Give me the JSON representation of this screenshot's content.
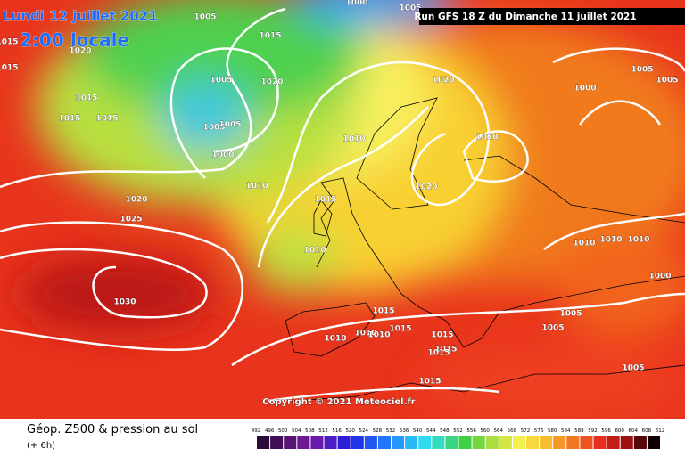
{
  "header": {
    "date": "Lundi 12 juillet 2021",
    "time": "2:00 locale",
    "run": "Run GFS 18 Z du Dimanche 11 juillet 2021"
  },
  "copyright": "Copyright © 2021 Meteociel.fr",
  "legend": {
    "title": "Géop. Z500 & pression au sol",
    "lead": "(+ 6h)",
    "ticks": [
      492,
      496,
      500,
      504,
      508,
      512,
      516,
      520,
      524,
      528,
      532,
      536,
      540,
      544,
      548,
      552,
      556,
      560,
      564,
      568,
      572,
      576,
      580,
      584,
      588,
      592,
      596,
      600,
      604,
      608,
      612
    ]
  },
  "isobar_labels": [
    1005,
    1000,
    1005,
    1015,
    1020,
    1015,
    1015,
    1005,
    1020,
    1015,
    1015,
    1015,
    1005,
    1000,
    1010,
    1010,
    1020,
    1025,
    1015,
    1010,
    1030,
    1020,
    1020,
    1020,
    1005,
    1000,
    1005,
    1010,
    1010,
    1010,
    1000,
    1015,
    1005,
    1005,
    1010,
    1010,
    1010,
    1015,
    1015,
    1015,
    1015,
    1005,
    1015,
    1005
  ]
}
